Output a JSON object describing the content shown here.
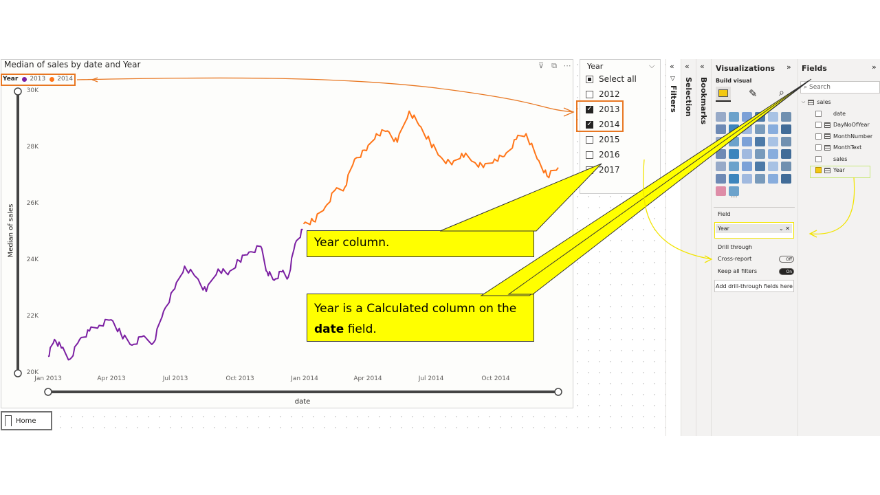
{
  "chart": {
    "title": "Median of sales by date and Year",
    "legend_title": "Year",
    "ylabel": "Median of sales",
    "xlabel": "date",
    "y_ticks": [
      "30K",
      "28K",
      "26K",
      "24K",
      "22K",
      "20K"
    ],
    "x_ticks": [
      "Jan 2013",
      "Apr 2013",
      "Jul 2013",
      "Oct 2013",
      "Jan 2014",
      "Apr 2014",
      "Jul 2014",
      "Oct 2014"
    ],
    "header_icons": [
      "filter-icon",
      "focus-mode-icon",
      "more-options-icon"
    ]
  },
  "chart_data": {
    "type": "line",
    "title": "Median of sales by date and Year",
    "xlabel": "date",
    "ylabel": "Median of sales",
    "ylim": [
      20000,
      30000
    ],
    "x_range": [
      "2013-01-01",
      "2014-12-31"
    ],
    "legend_placement": "top-left",
    "grid": false,
    "series": [
      {
        "name": "2013",
        "color": "#7b1fa2",
        "points": [
          [
            "2013-01-01",
            20600
          ],
          [
            "2013-01-10",
            21200
          ],
          [
            "2013-01-20",
            20900
          ],
          [
            "2013-02-01",
            20500
          ],
          [
            "2013-02-15",
            21200
          ],
          [
            "2013-03-01",
            21500
          ],
          [
            "2013-03-15",
            21700
          ],
          [
            "2013-04-01",
            21900
          ],
          [
            "2013-04-15",
            21400
          ],
          [
            "2013-05-01",
            21000
          ],
          [
            "2013-05-15",
            21300
          ],
          [
            "2013-06-01",
            21100
          ],
          [
            "2013-06-15",
            22200
          ],
          [
            "2013-07-01",
            23000
          ],
          [
            "2013-07-15",
            23800
          ],
          [
            "2013-08-01",
            23400
          ],
          [
            "2013-08-15",
            22900
          ],
          [
            "2013-09-01",
            23700
          ],
          [
            "2013-09-15",
            23500
          ],
          [
            "2013-10-01",
            24000
          ],
          [
            "2013-10-15",
            24300
          ],
          [
            "2013-11-01",
            24500
          ],
          [
            "2013-11-10",
            23600
          ],
          [
            "2013-11-20",
            23300
          ],
          [
            "2013-12-01",
            23600
          ],
          [
            "2013-12-10",
            23400
          ],
          [
            "2013-12-20",
            24600
          ],
          [
            "2013-12-31",
            25100
          ]
        ]
      },
      {
        "name": "2014",
        "color": "#ff7518",
        "points": [
          [
            "2014-01-01",
            25300
          ],
          [
            "2014-01-15",
            25400
          ],
          [
            "2014-02-01",
            25900
          ],
          [
            "2014-02-15",
            26500
          ],
          [
            "2014-03-01",
            26600
          ],
          [
            "2014-03-15",
            27600
          ],
          [
            "2014-04-01",
            27900
          ],
          [
            "2014-04-15",
            28500
          ],
          [
            "2014-05-01",
            28600
          ],
          [
            "2014-05-15",
            28200
          ],
          [
            "2014-06-01",
            29300
          ],
          [
            "2014-06-15",
            28800
          ],
          [
            "2014-07-01",
            28200
          ],
          [
            "2014-07-15",
            27700
          ],
          [
            "2014-08-01",
            27400
          ],
          [
            "2014-08-15",
            27800
          ],
          [
            "2014-09-01",
            27500
          ],
          [
            "2014-09-15",
            27300
          ],
          [
            "2014-10-01",
            27600
          ],
          [
            "2014-10-15",
            27700
          ],
          [
            "2014-11-01",
            28300
          ],
          [
            "2014-11-15",
            28500
          ],
          [
            "2014-12-01",
            27600
          ],
          [
            "2014-12-15",
            27000
          ],
          [
            "2014-12-31",
            27300
          ]
        ]
      }
    ]
  },
  "slicer": {
    "title": "Year",
    "items": [
      {
        "label": "Select all",
        "state": "partial"
      },
      {
        "label": "2012",
        "state": "off"
      },
      {
        "label": "2013",
        "state": "on"
      },
      {
        "label": "2014",
        "state": "on"
      },
      {
        "label": "2015",
        "state": "off"
      },
      {
        "label": "2016",
        "state": "off"
      },
      {
        "label": "2017",
        "state": "off"
      }
    ]
  },
  "page_tab": {
    "label": "Home"
  },
  "panes": {
    "filters": "Filters",
    "selection": "Selection",
    "bookmarks": "Bookmarks",
    "visualizations": {
      "title": "Visualizations",
      "build_visual": "Build visual",
      "field_section": "Field",
      "field_value": "Year",
      "drill_through": "Drill through",
      "cross_report": "Cross-report",
      "cross_report_state": "Off",
      "keep_all_filters": "Keep all filters",
      "keep_all_filters_state": "On",
      "add_drill_button": "Add drill-through fields here",
      "more": "..."
    },
    "fields": {
      "title": "Fields",
      "search_placeholder": "Search",
      "table_name": "sales",
      "items": [
        {
          "label": "date",
          "checked": false,
          "calc": false
        },
        {
          "label": "DayNoOfYear",
          "checked": false,
          "calc": true
        },
        {
          "label": "MonthNumber",
          "checked": false,
          "calc": true
        },
        {
          "label": "MonthText",
          "checked": false,
          "calc": true
        },
        {
          "label": "sales",
          "checked": false,
          "calc": false
        },
        {
          "label": "Year",
          "checked": true,
          "calc": true
        }
      ]
    }
  },
  "callouts": {
    "callout1": "Year column.",
    "callout2_part1": "Year is a Calculated column on the ",
    "callout2_bold": "date",
    "callout2_part2": " field."
  },
  "colors": {
    "series_2013": "#7b1fa2",
    "series_2014": "#ff7518",
    "callout": "#ffff00",
    "highlight_orange": "#e87722"
  }
}
